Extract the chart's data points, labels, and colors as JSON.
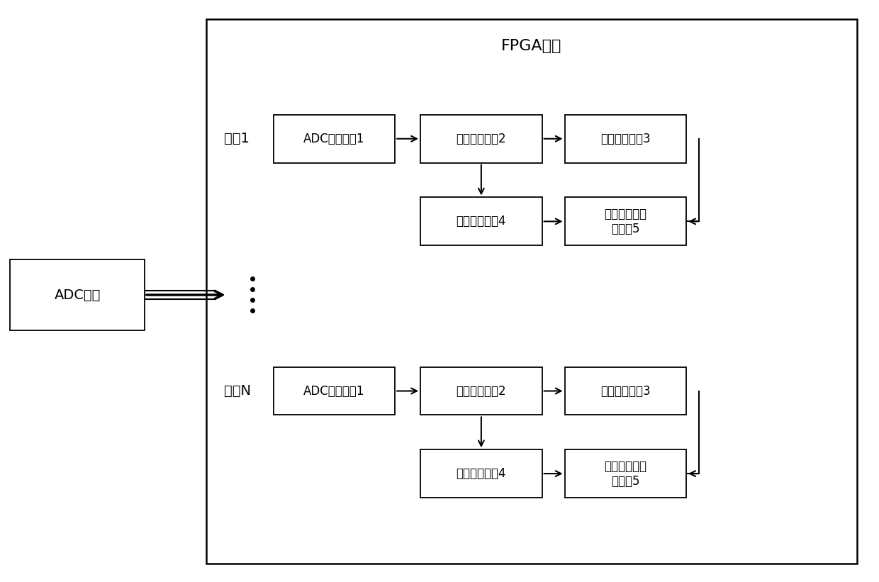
{
  "title": "FPGA器件",
  "adc_device_label": "ADC器件",
  "channel1_label": "通道1",
  "channelN_label": "通道N",
  "block_adc1": "ADC采样模块1",
  "block_accum1": "数据累加模块2",
  "block_locate1": "光栅定位模块3",
  "block_splice1": "光谱拼接模块4",
  "block_demod1": "光栅解调及发\n送模块5",
  "block_adc2": "ADC采样模块1",
  "block_accum2": "数据累加模块2",
  "block_locate2": "光栅定位模块3",
  "block_splice2": "光谱拼接模块4",
  "block_demod2": "光栅解调及发\n送模块5",
  "bg_color": "#ffffff",
  "box_color": "#ffffff",
  "box_edge_color": "#000000",
  "text_color": "#000000",
  "arrow_color": "#000000",
  "fpga_border_color": "#000000",
  "font_size_blocks": 12,
  "font_size_labels": 14,
  "font_size_title": 16
}
